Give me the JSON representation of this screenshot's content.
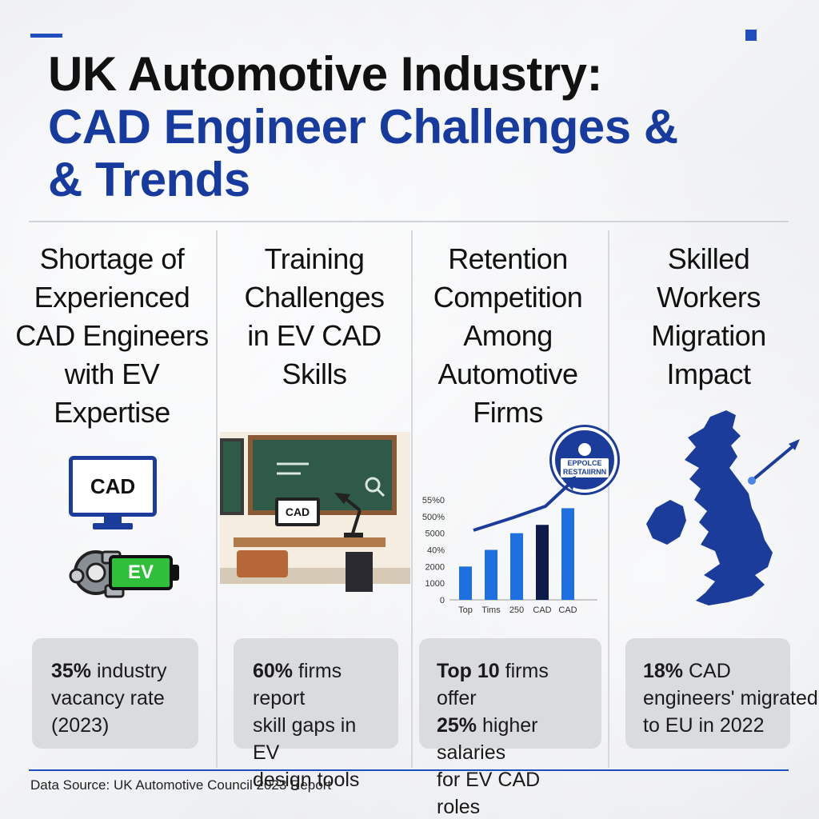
{
  "header": {
    "title_line1": "UK Automotive Industry:",
    "title_line2": "CAD Engineer Challenges &",
    "title_line3": "& Trends"
  },
  "columns": [
    {
      "title_lines": [
        "Shortage of",
        "Experienced",
        "CAD Engineers",
        "with EV",
        "Expertise"
      ],
      "illustration_labels": {
        "monitor": "CAD",
        "battery": "EV"
      },
      "stat_highlight": "35%",
      "stat_rest_line1": " industry",
      "stat_line2": "vacancy rate",
      "stat_line3": "(2023)"
    },
    {
      "title_lines": [
        "Training",
        "Challenges",
        "in EV CAD",
        "Skills"
      ],
      "illustration_labels": {
        "monitor": "CAD"
      },
      "stat_highlight": "60%",
      "stat_rest_line1": " firms report",
      "stat_line2": "skill gaps in EV",
      "stat_line3": "design tools"
    },
    {
      "title_lines": [
        "Retention",
        "Competition",
        "Among",
        "Automotive",
        "Firms"
      ],
      "badge_text_line1": "EPPOLCE",
      "badge_text_line2": "RESTAIIRNN",
      "stat_highlight_1": "Top 10",
      "stat_rest_line1": " firms offer",
      "stat_highlight_2": "25%",
      "stat_rest_line2": " higher salaries",
      "stat_line3": "for EV CAD roles"
    },
    {
      "title_lines": [
        "Skilled",
        "Workers",
        "Migration",
        "Impact"
      ],
      "stat_highlight": "18%",
      "stat_rest_line1": " CAD",
      "stat_line2": "engineers' migrated",
      "stat_line3": "to EU in 2022"
    }
  ],
  "chart_data": {
    "type": "bar",
    "categories": [
      "Top",
      "Tims",
      "250",
      "CAD",
      "CAD"
    ],
    "values": [
      2000,
      3000,
      4000,
      4500,
      5500
    ],
    "y_tick_labels": [
      "0",
      "1000",
      "2000",
      "40%",
      "5000",
      "500%",
      "55%0"
    ],
    "ylim": [
      0,
      6000
    ],
    "colors": [
      "#1e6fe0",
      "#1e6fe0",
      "#1e6fe0",
      "#0d1a4a",
      "#1e6fe0"
    ],
    "trend_arrow": true
  },
  "footer": {
    "source": "Data Source: UK Automotive Council 2023 Report"
  },
  "colors": {
    "accent": "#1f4fbf",
    "title_blue": "#173a9e",
    "map_blue": "#1c3c9c"
  }
}
